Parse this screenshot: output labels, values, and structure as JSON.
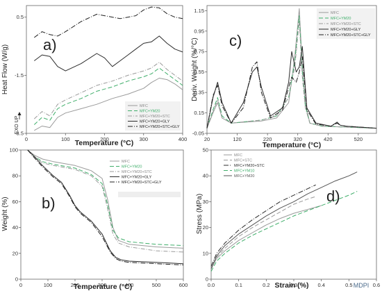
{
  "figure": {
    "tag": "MDPI"
  },
  "colors": {
    "gray": "#9a9a9a",
    "green": "#3fae6a",
    "dark": "#2b2b2b",
    "darker": "#1f1f1f",
    "axis": "#333333"
  },
  "chart_data": [
    {
      "type": "line",
      "panel": "a)",
      "xlabel": "Temperature (°C)",
      "ylabel": "Heat Flow (W/g)",
      "xlim": [
        0,
        400
      ],
      "ylim": [
        -3.5,
        0.9
      ],
      "xticks": [
        0,
        100,
        200,
        300,
        400
      ],
      "yticks": [
        {
          "v": 0.5,
          "label": "0.5"
        },
        {
          "v": -1.5,
          "label": "-1.5"
        },
        {
          "v": -3.5,
          "label": "-3.5"
        }
      ],
      "annotation": "EXO UP",
      "legend": "bottom-right",
      "series": [
        {
          "name": "MFC",
          "color": "#9a9a9a",
          "dash": "",
          "x": [
            20,
            40,
            60,
            80,
            100,
            140,
            180,
            220,
            260,
            300,
            320,
            340,
            360,
            380,
            400
          ],
          "y": [
            -3.4,
            -3.25,
            -3.3,
            -2.95,
            -2.8,
            -2.65,
            -2.5,
            -2.3,
            -2.15,
            -1.95,
            -1.75,
            -1.6,
            -1.65,
            -1.8,
            -2.0
          ]
        },
        {
          "name": "MFC+YM20",
          "color": "#3fae6a",
          "dash": "6,3",
          "x": [
            20,
            40,
            60,
            80,
            100,
            140,
            180,
            220,
            260,
            300,
            320,
            340,
            360,
            380,
            400
          ],
          "y": [
            -3.2,
            -2.95,
            -3.05,
            -2.65,
            -2.5,
            -2.3,
            -2.05,
            -1.9,
            -1.7,
            -1.55,
            -1.45,
            -1.25,
            -1.45,
            -1.65,
            -1.85
          ]
        },
        {
          "name": "MFC+YM20+STC",
          "color": "#9a9a9a",
          "dash": "6,2,1,2",
          "x": [
            20,
            40,
            60,
            80,
            100,
            140,
            180,
            220,
            260,
            300,
            320,
            340,
            360,
            380,
            400
          ],
          "y": [
            -3.0,
            -2.75,
            -2.9,
            -2.5,
            -2.35,
            -2.1,
            -1.85,
            -1.7,
            -1.5,
            -1.35,
            -1.25,
            -1.05,
            -1.3,
            -1.5,
            -1.7
          ]
        },
        {
          "name": "MFC+YM20+GLY",
          "color": "#2b2b2b",
          "dash": "",
          "x": [
            20,
            40,
            60,
            80,
            100,
            140,
            180,
            200,
            220,
            240,
            260,
            280,
            300,
            320,
            340,
            360,
            380,
            400
          ],
          "y": [
            -1.0,
            -0.8,
            -0.85,
            -1.2,
            -1.35,
            -1.1,
            -0.75,
            -0.9,
            -1.2,
            -1.0,
            -0.8,
            -0.6,
            -0.4,
            -0.35,
            -0.15,
            -0.4,
            -0.6,
            -0.7
          ]
        },
        {
          "name": "MFC+YM20+STC+GLY",
          "color": "#1f1f1f",
          "dash": "7,2,1,2",
          "x": [
            20,
            40,
            60,
            80,
            100,
            140,
            180,
            200,
            220,
            240,
            260,
            280,
            300,
            320,
            340,
            360,
            380,
            400
          ],
          "y": [
            -0.2,
            0.0,
            -0.1,
            -0.15,
            0.0,
            0.35,
            0.6,
            0.55,
            0.5,
            0.45,
            0.5,
            0.55,
            0.75,
            0.85,
            0.82,
            0.62,
            0.5,
            0.45
          ]
        }
      ]
    },
    {
      "type": "line",
      "panel": "b)",
      "xlabel": "Temperature (°C)",
      "ylabel": "Weight (%)",
      "xlim": [
        0,
        600
      ],
      "ylim": [
        0,
        100
      ],
      "xticks": [
        0,
        100,
        200,
        300,
        400,
        500,
        600
      ],
      "yticks": [
        {
          "v": 0,
          "label": "0"
        },
        {
          "v": 20,
          "label": "20"
        },
        {
          "v": 40,
          "label": "40"
        },
        {
          "v": 60,
          "label": "60"
        },
        {
          "v": 80,
          "label": "80"
        },
        {
          "v": 100,
          "label": "100"
        }
      ],
      "legend": "top-right",
      "series": [
        {
          "name": "MFC",
          "color": "#9a9a9a",
          "dash": "",
          "x": [
            25,
            50,
            80,
            120,
            200,
            260,
            300,
            320,
            340,
            360,
            400,
            500,
            600
          ],
          "y": [
            100,
            96,
            93,
            91,
            88,
            84,
            78,
            62,
            40,
            30,
            27,
            25,
            24
          ]
        },
        {
          "name": "MFC+YM20",
          "color": "#3fae6a",
          "dash": "6,3",
          "x": [
            25,
            50,
            80,
            120,
            200,
            260,
            300,
            320,
            340,
            360,
            400,
            500,
            600
          ],
          "y": [
            100,
            95,
            91,
            89,
            86,
            81,
            74,
            58,
            38,
            32,
            29,
            27,
            26
          ]
        },
        {
          "name": "MFC+YM20+STC",
          "color": "#9a9a9a",
          "dash": "6,2,1,2",
          "x": [
            25,
            50,
            80,
            120,
            200,
            260,
            300,
            320,
            340,
            360,
            400,
            500,
            600
          ],
          "y": [
            100,
            95,
            90,
            88,
            85,
            80,
            72,
            55,
            35,
            28,
            25,
            22,
            21
          ]
        },
        {
          "name": "MFC+YM20+GLY",
          "color": "#2b2b2b",
          "dash": "",
          "x": [
            25,
            50,
            80,
            120,
            150,
            180,
            200,
            220,
            260,
            300,
            330,
            350,
            370,
            400,
            500,
            600
          ],
          "y": [
            100,
            95,
            88,
            80,
            75,
            65,
            57,
            52,
            45,
            35,
            22,
            17,
            15,
            14,
            13,
            12
          ]
        },
        {
          "name": "MFC+YM20+STC+GLY",
          "color": "#1f1f1f",
          "dash": "7,2,1,2",
          "x": [
            25,
            50,
            80,
            120,
            150,
            180,
            200,
            220,
            260,
            300,
            330,
            350,
            370,
            400,
            500,
            600
          ],
          "y": [
            100,
            94,
            87,
            79,
            74,
            64,
            56,
            51,
            44,
            33,
            21,
            16,
            14,
            13,
            12,
            11
          ]
        }
      ]
    },
    {
      "type": "line",
      "panel": "c)",
      "xlabel": "Temperature (°C)",
      "ylabel": "Deriv. Weight (%/°C)",
      "xlim": [
        20,
        580
      ],
      "ylim": [
        -0.05,
        1.2
      ],
      "xticks": [
        20,
        120,
        220,
        320,
        420,
        520
      ],
      "yticks": [
        {
          "v": -0.05,
          "label": "-0.05"
        },
        {
          "v": 0.15,
          "label": "0.15"
        },
        {
          "v": 0.35,
          "label": "0.35"
        },
        {
          "v": 0.55,
          "label": "0.55"
        },
        {
          "v": 0.75,
          "label": "0.75"
        },
        {
          "v": 0.95,
          "label": "0.95"
        },
        {
          "v": 1.15,
          "label": "1.15"
        }
      ],
      "legend": "top-right",
      "series": [
        {
          "name": "MFC",
          "color": "#9a9a9a",
          "dash": "",
          "x": [
            20,
            40,
            55,
            70,
            100,
            200,
            250,
            290,
            310,
            325,
            335,
            345,
            360,
            400,
            580
          ],
          "y": [
            0.0,
            0.15,
            0.25,
            0.1,
            0.05,
            0.07,
            0.1,
            0.25,
            0.7,
            1.17,
            0.6,
            0.25,
            0.05,
            0.02,
            0.0
          ]
        },
        {
          "name": "MFC+YM20",
          "color": "#3fae6a",
          "dash": "6,3",
          "x": [
            20,
            40,
            55,
            70,
            100,
            200,
            250,
            290,
            310,
            325,
            335,
            345,
            360,
            400,
            580
          ],
          "y": [
            0.0,
            0.18,
            0.3,
            0.12,
            0.05,
            0.08,
            0.12,
            0.3,
            0.65,
            1.1,
            0.55,
            0.22,
            0.05,
            0.02,
            0.0
          ]
        },
        {
          "name": "MFC+YM20+STC",
          "color": "#9a9a9a",
          "dash": "6,2,1,2",
          "x": [
            20,
            40,
            55,
            70,
            100,
            200,
            250,
            290,
            310,
            325,
            335,
            345,
            360,
            400,
            580
          ],
          "y": [
            0.0,
            0.16,
            0.28,
            0.1,
            0.05,
            0.08,
            0.12,
            0.3,
            0.6,
            1.05,
            0.5,
            0.2,
            0.05,
            0.02,
            0.0
          ]
        },
        {
          "name": "MFC+YM20+GLY",
          "color": "#2b2b2b",
          "dash": "",
          "x": [
            20,
            40,
            55,
            70,
            100,
            140,
            170,
            185,
            200,
            230,
            270,
            290,
            300,
            315,
            325,
            335,
            350,
            380,
            430,
            450,
            460,
            480,
            580
          ],
          "y": [
            0.0,
            0.3,
            0.45,
            0.25,
            0.05,
            0.25,
            0.55,
            0.6,
            0.4,
            0.12,
            0.2,
            0.45,
            0.75,
            0.55,
            0.6,
            0.8,
            0.2,
            0.05,
            0.02,
            0.06,
            0.03,
            0.02,
            0.0
          ]
        },
        {
          "name": "MFC+YM20+STC+GLY",
          "color": "#1f1f1f",
          "dash": "7,2,1,2",
          "x": [
            20,
            40,
            55,
            70,
            100,
            140,
            170,
            185,
            200,
            230,
            270,
            290,
            300,
            315,
            325,
            335,
            350,
            380,
            430,
            450,
            460,
            480,
            580
          ],
          "y": [
            0.0,
            0.32,
            0.42,
            0.22,
            0.05,
            0.2,
            0.6,
            0.65,
            0.35,
            0.1,
            0.18,
            0.4,
            0.5,
            0.45,
            0.55,
            0.7,
            0.18,
            0.04,
            0.02,
            0.05,
            0.03,
            0.02,
            0.0
          ]
        }
      ]
    },
    {
      "type": "line",
      "panel": "d)",
      "xlabel": "Strain (%)",
      "ylabel": "Stress (MPa)",
      "xlim": [
        0,
        0.6
      ],
      "ylim": [
        0,
        50
      ],
      "xticks": [
        0.0,
        0.1,
        0.2,
        0.3,
        0.4,
        0.5,
        0.6
      ],
      "yticks": [
        {
          "v": 0,
          "label": "0"
        },
        {
          "v": 10,
          "label": "10"
        },
        {
          "v": 20,
          "label": "20"
        },
        {
          "v": 30,
          "label": "30"
        },
        {
          "v": 40,
          "label": "40"
        },
        {
          "v": 50,
          "label": "50"
        }
      ],
      "legend": "top-left",
      "series": [
        {
          "name": "MFC",
          "color": "#9a9a9a",
          "dash": "",
          "x": [
            0,
            0.02,
            0.05,
            0.1,
            0.15,
            0.2,
            0.25,
            0.3,
            0.35,
            0.4
          ],
          "y": [
            4,
            8,
            11,
            15,
            18,
            21,
            23.5,
            25.5,
            27,
            28.5
          ]
        },
        {
          "name": "MFC+STC",
          "color": "#9a9a9a",
          "dash": "6,3",
          "x": [
            0,
            0.02,
            0.05,
            0.1,
            0.15,
            0.2,
            0.25,
            0.3,
            0.35,
            0.38
          ],
          "y": [
            4,
            8.5,
            12,
            16.5,
            20,
            23,
            26,
            29,
            31,
            32
          ]
        },
        {
          "name": "MFC+YM20+STC",
          "color": "#2b2b2b",
          "dash": "7,2,1,2",
          "x": [
            0,
            0.02,
            0.05,
            0.1,
            0.15,
            0.2,
            0.25,
            0.3,
            0.35,
            0.38
          ],
          "y": [
            5,
            10,
            14,
            19,
            23,
            26.5,
            30,
            32.5,
            35,
            36.5
          ]
        },
        {
          "name": "MFC+YM10",
          "color": "#3fae6a",
          "dash": "6,3",
          "x": [
            0,
            0.02,
            0.05,
            0.1,
            0.15,
            0.2,
            0.25,
            0.3,
            0.35,
            0.4,
            0.45,
            0.5,
            0.53
          ],
          "y": [
            3,
            7,
            10,
            14,
            17,
            19.5,
            22,
            24.5,
            26.5,
            28.5,
            30.5,
            32.5,
            34
          ]
        },
        {
          "name": "MFC+YM20",
          "color": "#555555",
          "dash": "",
          "x": [
            0,
            0.02,
            0.05,
            0.1,
            0.15,
            0.2,
            0.25,
            0.3,
            0.35,
            0.4,
            0.45,
            0.5,
            0.53
          ],
          "y": [
            4,
            9,
            13,
            17.5,
            21,
            24.5,
            27.5,
            30,
            33,
            35.5,
            38,
            40,
            41.5
          ]
        }
      ]
    }
  ]
}
